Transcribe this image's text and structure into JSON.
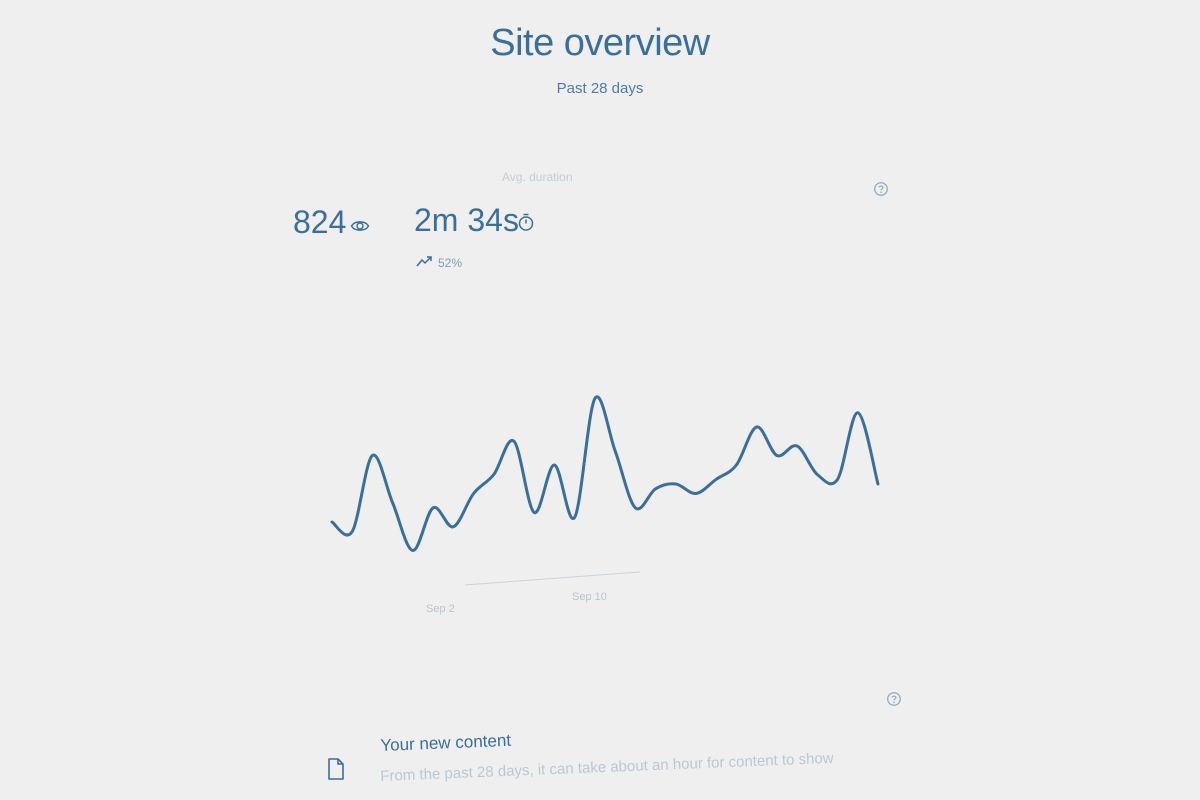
{
  "header": {
    "title": "Site overview",
    "subtitle": "Past 28 days"
  },
  "stats": {
    "views": {
      "label": "",
      "value": "824",
      "icon": "eye-icon",
      "change": "",
      "trend_icon": ""
    },
    "duration": {
      "label": "Avg. duration",
      "value": "2m 34s",
      "icon": "stopwatch-icon",
      "change": "52%",
      "trend_icon": "trend-up-icon"
    },
    "help_icon": "help-icon"
  },
  "chart_data": {
    "type": "line",
    "x_tick_labels": [
      "Sep 2",
      "Sep 10",
      ""
    ],
    "series": [
      {
        "values": [
          8,
          6,
          22,
          12,
          2,
          11,
          7,
          14,
          18,
          25,
          10,
          20,
          9,
          34,
          23,
          11,
          15,
          16,
          14,
          17,
          20,
          28,
          22,
          24,
          18,
          17,
          31,
          16
        ]
      }
    ],
    "ylim": [
      0,
      40
    ],
    "grid": false,
    "legend": "none"
  },
  "content": {
    "title": "Your new content",
    "description": "From the past 28 days, it can take about an hour for content to show",
    "icon": "document-icon",
    "help_icon": "help-icon"
  },
  "colors": {
    "accent": "#3a6f9c",
    "background": "#efefef",
    "muted": "#b8c4cf"
  }
}
